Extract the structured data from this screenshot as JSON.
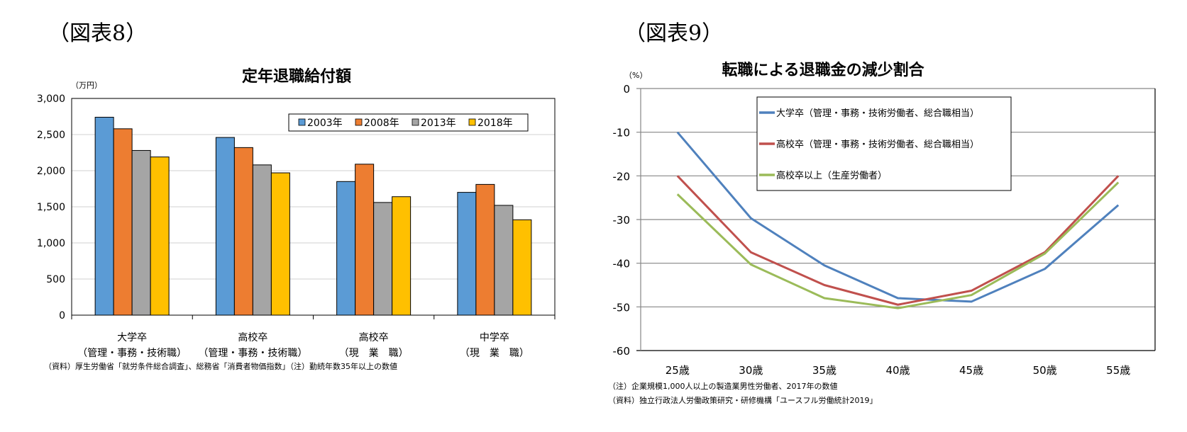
{
  "figures": [
    {
      "label": "（図表8）"
    },
    {
      "label": "（図表9）"
    }
  ],
  "chart_data": [
    {
      "type": "bar",
      "title": "定年退職給付額",
      "ylabel": "（万円）",
      "xlabel": "",
      "ylim": [
        0,
        3000
      ],
      "yticks": [
        "0",
        "500",
        "1,000",
        "1,500",
        "2,000",
        "2,500",
        "3,000"
      ],
      "ytick_values": [
        0,
        500,
        1000,
        1500,
        2000,
        2500,
        3000
      ],
      "grid": true,
      "legend_position": "top-right",
      "categories": [
        {
          "line1": "大学卒",
          "line2": "（管理・事務・技術職）"
        },
        {
          "line1": "高校卒",
          "line2": "（管理・事務・技術職）"
        },
        {
          "line1": "高校卒",
          "line2": "（現　業　職）"
        },
        {
          "line1": "中学卒",
          "line2": "（現　業　職）"
        }
      ],
      "series": [
        {
          "name": "2003年",
          "color": "#5b9bd5",
          "values": [
            2740,
            2460,
            1850,
            1700
          ]
        },
        {
          "name": "2008年",
          "color": "#ed7d31",
          "values": [
            2580,
            2320,
            2090,
            1810
          ]
        },
        {
          "name": "2013年",
          "color": "#a5a5a5",
          "values": [
            2280,
            2080,
            1560,
            1520
          ]
        },
        {
          "name": "2018年",
          "color": "#ffc000",
          "values": [
            2190,
            1970,
            1640,
            1320
          ]
        }
      ],
      "notes": [
        "（資料）厚生労働省「就労条件総合調査」、総務省「消費者物価指数」（注）勤続年数35年以上の数値"
      ]
    },
    {
      "type": "line",
      "title": "転職による退職金の減少割合",
      "ylabel": "（%）",
      "xlabel": "",
      "ylim": [
        -60,
        0
      ],
      "yticks": [
        "0",
        "-10",
        "-20",
        "-30",
        "-40",
        "-50",
        "-60"
      ],
      "ytick_values": [
        0,
        -10,
        -20,
        -30,
        -40,
        -50,
        -60
      ],
      "grid": true,
      "legend_position": "top-center",
      "x": [
        "25歳",
        "30歳",
        "35歳",
        "40歳",
        "45歳",
        "50歳",
        "55歳"
      ],
      "series": [
        {
          "name": "大学卒（管理・事務・技術労働者、総合職相当）",
          "color": "#4f81bd",
          "values": [
            -10,
            -29.7,
            -40.5,
            -48,
            -48.8,
            -41.3,
            -26.7
          ]
        },
        {
          "name": "高校卒（管理・事務・技術労働者、総合職相当）",
          "color": "#c0504d",
          "values": [
            -20,
            -37.5,
            -45,
            -49.5,
            -46.3,
            -37.5,
            -20
          ]
        },
        {
          "name": "高校卒以上（生産労働者）",
          "color": "#9bbb59",
          "values": [
            -24.2,
            -40.3,
            -48,
            -50.3,
            -47.3,
            -37.8,
            -21.5
          ]
        }
      ],
      "notes": [
        "（注）企業規模1,000人以上の製造業男性労働者、2017年の数値",
        "（資料）独立行政法人労働政策研究・研修機構「ユースフル労働統計2019」"
      ]
    }
  ]
}
